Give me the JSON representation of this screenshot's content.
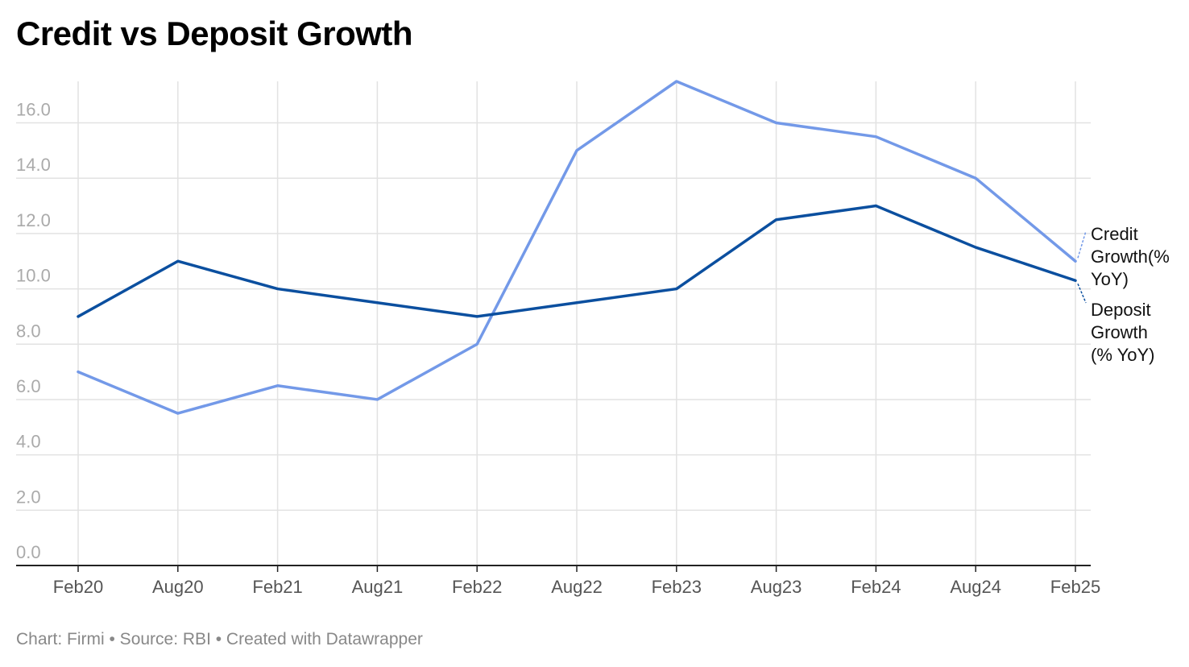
{
  "title": "Credit vs Deposit Growth",
  "footer": {
    "text": "Chart: Firmi • Source: RBI • Created with Datawrapper"
  },
  "colors": {
    "credit": "#7399e8",
    "deposit": "#0b4f9f",
    "grid": "#e2e2e2",
    "axis": "#222222"
  },
  "chart_data": {
    "type": "line",
    "x": [
      "Feb20",
      "Aug20",
      "Feb21",
      "Aug21",
      "Feb22",
      "Aug22",
      "Feb23",
      "Aug23",
      "Feb24",
      "Aug24",
      "Feb25"
    ],
    "ylim": [
      0,
      17.5
    ],
    "yticks": [
      "0.0",
      "2.0",
      "4.0",
      "6.0",
      "8.0",
      "10.0",
      "12.0",
      "14.0",
      "16.0"
    ],
    "grid": true,
    "legend": "direct labels at line ends (right)",
    "series": [
      {
        "name": "Credit Growth(% YoY)",
        "label_lines": [
          "Credit",
          "Growth(%",
          "YoY)"
        ],
        "values": [
          7.0,
          5.5,
          6.5,
          6.0,
          8.0,
          15.0,
          17.5,
          16.0,
          15.5,
          14.0,
          11.0
        ]
      },
      {
        "name": "Deposit Growth (% YoY)",
        "label_lines": [
          "Deposit",
          "Growth",
          "(% YoY)"
        ],
        "values": [
          9.0,
          11.0,
          10.0,
          9.5,
          9.0,
          9.5,
          10.0,
          12.5,
          13.0,
          11.5,
          10.3
        ]
      }
    ]
  }
}
